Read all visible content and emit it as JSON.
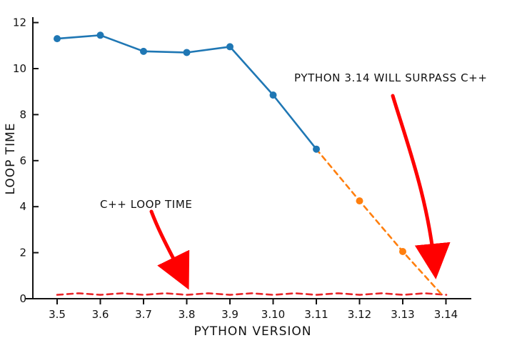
{
  "chart_data": {
    "type": "line",
    "title": "",
    "xlabel": "PYTHON VERSION",
    "ylabel": "LOOP TIME",
    "categories": [
      "3.5",
      "3.6",
      "3.7",
      "3.8",
      "3.9",
      "3.10",
      "3.11",
      "3.12",
      "3.13",
      "3.14"
    ],
    "yticks": [
      "0",
      "2",
      "4",
      "6",
      "8",
      "10",
      "12"
    ],
    "ylim": [
      0,
      12.3
    ],
    "grid": false,
    "legend": "none",
    "series": [
      {
        "key": "measured",
        "style": "solid",
        "color": "#1f77b4",
        "x": [
          "3.5",
          "3.6",
          "3.7",
          "3.8",
          "3.9",
          "3.10",
          "3.11"
        ],
        "values": [
          11.3,
          11.45,
          10.75,
          10.7,
          10.95,
          8.85,
          6.5
        ]
      },
      {
        "key": "extrapolated",
        "style": "dashed",
        "color": "#ff7f0e",
        "x": [
          "3.11",
          "3.12",
          "3.13",
          "3.14"
        ],
        "values": [
          6.5,
          4.25,
          2.05,
          0.15
        ],
        "markers": [
          "3.12",
          "3.13"
        ]
      },
      {
        "key": "cpp",
        "style": "dashed",
        "color": "#e8262a",
        "x": [
          "3.5",
          "3.6",
          "3.7",
          "3.8",
          "3.9",
          "3.10",
          "3.11",
          "3.12",
          "3.13",
          "3.14"
        ],
        "values": [
          0.2,
          0.2,
          0.2,
          0.2,
          0.2,
          0.2,
          0.2,
          0.2,
          0.2,
          0.2
        ]
      }
    ],
    "annotations": [
      {
        "text": "C++ LOOP TIME",
        "arrow_color": "#ff0000",
        "arrow_target": {
          "x": "3.8",
          "y": 0.4
        }
      },
      {
        "text": "PYTHON 3.14 WILL SURPASS C++",
        "arrow_color": "#ff0000",
        "arrow_target": {
          "x": "3.14",
          "y": 0.6
        }
      }
    ]
  }
}
